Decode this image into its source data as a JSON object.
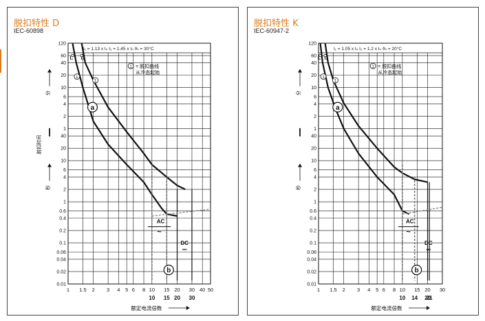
{
  "accent_color": "#e07b1c",
  "chart_data": [
    {
      "type": "line",
      "title": "脱扣特性 D",
      "subtitle": "IEC-60898",
      "xlabel": "额定电流倍数",
      "ylabel": "脱扣时间",
      "y_unit_upper": "分",
      "y_unit_lower": "秒",
      "x_scale": "log",
      "y_scale": "log",
      "xlim": [
        1,
        50
      ],
      "y_axis_note": "y axis spans 0.01 s … 120 min; minutes band above 1 min",
      "x_ticks": [
        "1",
        "1.5",
        "2",
        "3",
        "4",
        "5",
        "6",
        "8",
        "10",
        "15",
        "20",
        "30",
        "40",
        "50"
      ],
      "x_bold_ticks": [
        "10",
        "15",
        "20",
        "30"
      ],
      "y_ticks_minutes": [
        "120",
        "60",
        "40",
        "20",
        "10",
        "6",
        "4",
        "2",
        "1"
      ],
      "y_ticks_seconds": [
        "40",
        "20",
        "10",
        "6",
        "4",
        "2",
        "1",
        "0.6",
        "0.4",
        "0.2",
        "0.1",
        "0.06",
        "0.04",
        "0.02",
        "0.01"
      ],
      "header_text": "I₁ = 1.13 x Iₙ    I₂ = 1.45 x Iₙ    ϑₙ = 30°C",
      "marker_labels": [
        "I₁",
        "I₂"
      ],
      "legend_note": "① = 脱扣曲线 从冷态起始",
      "legend_note_line1": "= 脱扣曲线",
      "legend_note_line2": "从冷态起始",
      "labels": {
        "a": "a",
        "b": "b",
        "ac": "AC",
        "ac_symbol": "~",
        "dc": "DC",
        "dc_symbol": "⎓",
        "circle_one": "1"
      },
      "series": [
        {
          "name": "lower",
          "points": [
            [
              1.13,
              7200
            ],
            [
              1.25,
              2400
            ],
            [
              1.5,
              600
            ],
            [
              2,
              90
            ],
            [
              3,
              25
            ],
            [
              5,
              8
            ],
            [
              8,
              3
            ],
            [
              10,
              1.5
            ],
            [
              13,
              0.7
            ],
            [
              15,
              0.5
            ],
            [
              20,
              0.45
            ]
          ]
        },
        {
          "name": "upper",
          "points": [
            [
              1.45,
              7200
            ],
            [
              1.6,
              2400
            ],
            [
              2,
              900
            ],
            [
              3,
              200
            ],
            [
              5,
              50
            ],
            [
              8,
              15
            ],
            [
              10,
              8
            ],
            [
              15,
              4
            ],
            [
              20,
              2.5
            ],
            [
              25,
              2
            ]
          ]
        }
      ],
      "ac_band": [
        10,
        15
      ],
      "dc_band": [
        20,
        30
      ]
    },
    {
      "type": "line",
      "title": "脱扣特性 K",
      "subtitle": "IEC-60947-2",
      "xlabel": "额定电流倍数",
      "ylabel": "",
      "y_unit_upper": "分",
      "y_unit_lower": "秒",
      "x_scale": "log",
      "y_scale": "log",
      "xlim": [
        1,
        30
      ],
      "x_ticks": [
        "1",
        "1.5",
        "2",
        "3",
        "4",
        "5",
        "6",
        "8",
        "10",
        "15",
        "20",
        "30"
      ],
      "x_bold_ticks": [
        "10",
        "14",
        "20",
        "21"
      ],
      "y_ticks_minutes": [
        "120",
        "60",
        "40",
        "20",
        "10",
        "6",
        "4",
        "2",
        "1"
      ],
      "y_ticks_seconds": [
        "40",
        "20",
        "10",
        "6",
        "4",
        "2",
        "1",
        "0.6",
        "0.4",
        "0.2",
        "0.1",
        "0.06",
        "0.04",
        "0.02",
        "0.01"
      ],
      "header_text": "I₁ = 1.05 x Iₙ    I₂ = 1.2 x Iₙ    ϑₙ = 20°C",
      "marker_labels": [
        "I₁",
        "I₂"
      ],
      "legend_note": "① = 脱扣曲线 从冷态起始",
      "legend_note_line1": "= 脱扣曲线",
      "legend_note_line2": "从冷态起始",
      "labels": {
        "a": "a",
        "b": "b",
        "ac": "AC",
        "ac_symbol": "~",
        "dc": "DC",
        "dc_symbol": "⎓",
        "circle_one": "1"
      },
      "series": [
        {
          "name": "lower",
          "points": [
            [
              1.05,
              7200
            ],
            [
              1.12,
              2400
            ],
            [
              1.3,
              600
            ],
            [
              1.6,
              180
            ],
            [
              2,
              60
            ],
            [
              3,
              15
            ],
            [
              5,
              4
            ],
            [
              8,
              1.5
            ],
            [
              10,
              0.6
            ],
            [
              12,
              0.5
            ]
          ]
        },
        {
          "name": "upper",
          "points": [
            [
              1.2,
              7200
            ],
            [
              1.3,
              2400
            ],
            [
              1.5,
              900
            ],
            [
              2,
              250
            ],
            [
              3,
              70
            ],
            [
              5,
              20
            ],
            [
              8,
              7
            ],
            [
              10,
              5
            ],
            [
              14,
              3.5
            ],
            [
              20,
              3
            ]
          ]
        }
      ],
      "ac_band": [
        10,
        14
      ],
      "dc_band": [
        20,
        21
      ]
    }
  ]
}
